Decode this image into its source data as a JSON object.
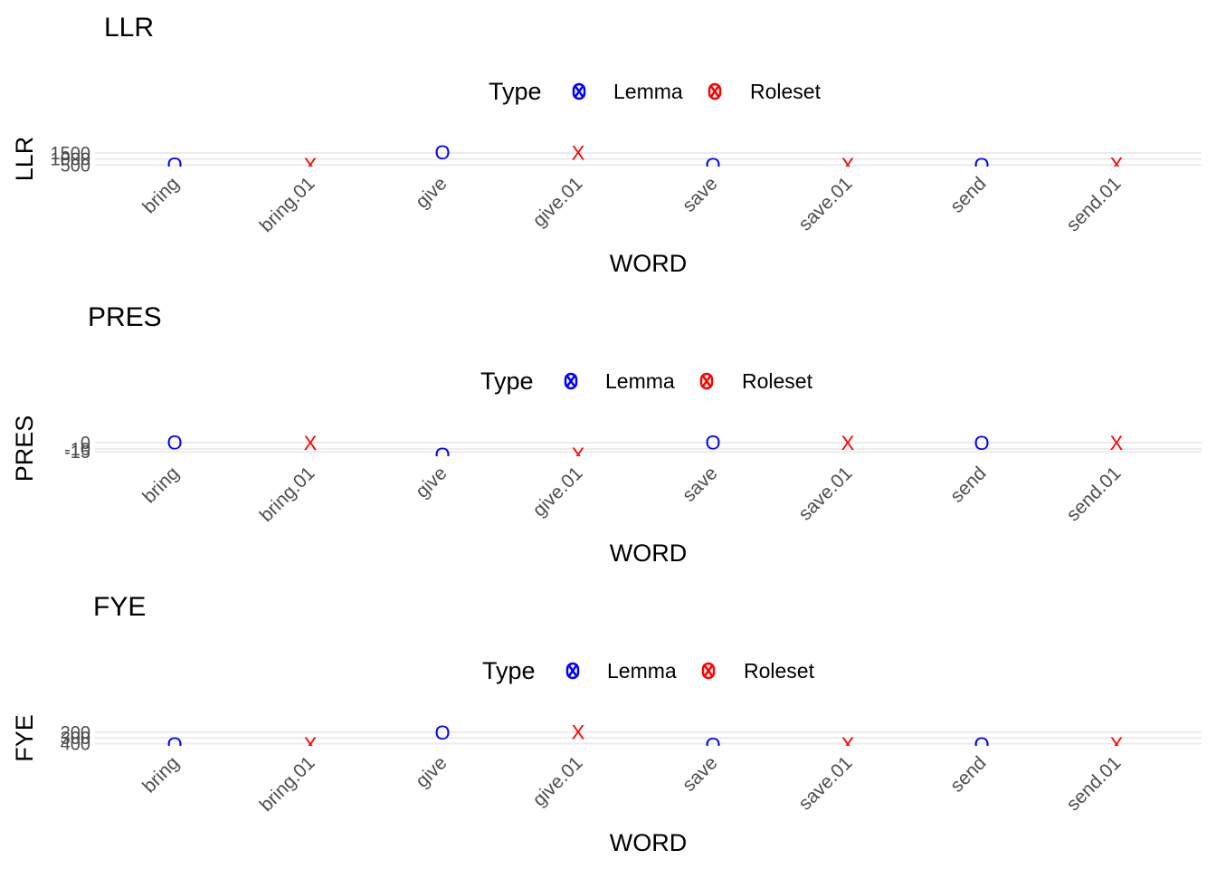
{
  "colors": {
    "Lemma": "#0000ff",
    "Roleset": "#ff0000"
  },
  "legend": {
    "title": "Type",
    "items": [
      {
        "label": "Lemma",
        "key": "Lemma"
      },
      {
        "label": "Roleset",
        "key": "Roleset"
      }
    ]
  },
  "chart_data": [
    {
      "type": "scatter",
      "title": "LLR",
      "xlabel": "WORD",
      "ylabel": "LLR",
      "categories": [
        "bring",
        "bring.01",
        "give",
        "give.01",
        "save",
        "save.01",
        "send",
        "send.01"
      ],
      "types": [
        "Lemma",
        "Roleset",
        "Lemma",
        "Roleset",
        "Lemma",
        "Roleset",
        "Lemma",
        "Roleset"
      ],
      "shapes": [
        "O",
        "X",
        "O",
        "X",
        "O",
        "X",
        "O",
        "X"
      ],
      "values": [
        560,
        530,
        1560,
        1520,
        540,
        545,
        545,
        560
      ],
      "yticks": [
        {
          "label": "1500",
          "value": 1500
        },
        {
          "label": "1000",
          "value": 1000
        },
        {
          "label": "500",
          "value": 500
        }
      ],
      "ylim": [
        380,
        1650
      ],
      "legend_position": "top",
      "grid": true
    },
    {
      "type": "scatter",
      "title": "PRES",
      "xlabel": "WORD",
      "ylabel": "PRES",
      "categories": [
        "bring",
        "bring.01",
        "give",
        "give.01",
        "save",
        "save.01",
        "send",
        "send.01"
      ],
      "types": [
        "Lemma",
        "Roleset",
        "Lemma",
        "Roleset",
        "Lemma",
        "Roleset",
        "Lemma",
        "Roleset"
      ],
      "shapes": [
        "O",
        "X",
        "O",
        "X",
        "O",
        "X",
        "O",
        "X"
      ],
      "values": [
        1,
        0,
        -19,
        -19,
        1,
        0,
        0,
        0
      ],
      "yticks": [
        {
          "label": "0",
          "value": 0
        },
        {
          "label": "-10",
          "value": -10
        },
        {
          "label": "-15",
          "value": -15
        }
      ],
      "ylim": [
        -22,
        3
      ],
      "legend_position": "top",
      "grid": true
    },
    {
      "type": "scatter",
      "title": "FYE",
      "xlabel": "WORD",
      "ylabel": "FYE",
      "categories": [
        "bring",
        "bring.01",
        "give",
        "give.01",
        "save",
        "save.01",
        "send",
        "send.01"
      ],
      "types": [
        "Lemma",
        "Roleset",
        "Lemma",
        "Roleset",
        "Lemma",
        "Roleset",
        "Lemma",
        "Roleset"
      ],
      "shapes": [
        "O",
        "X",
        "O",
        "X",
        "O",
        "X",
        "O",
        "X"
      ],
      "values": [
        410,
        410,
        200,
        195,
        420,
        410,
        405,
        410
      ],
      "yticks": [
        {
          "label": "200",
          "value": 200
        },
        {
          "label": "300",
          "value": 300
        },
        {
          "label": "400",
          "value": 400
        }
      ],
      "ylim": [
        440,
        170
      ],
      "legend_position": "top",
      "grid": true
    }
  ]
}
